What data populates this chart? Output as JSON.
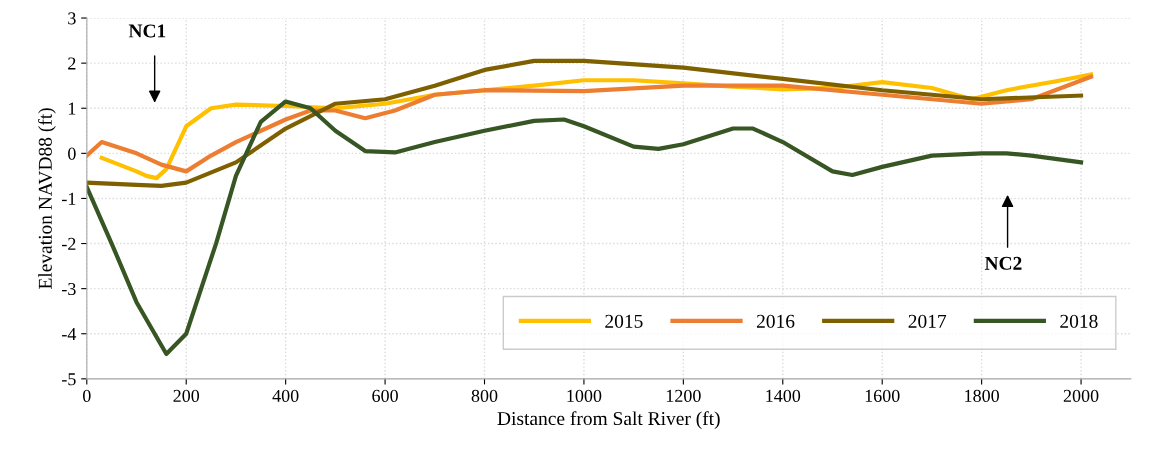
{
  "chart_data": {
    "type": "line",
    "xlabel": "Distance from Salt River (ft)",
    "ylabel": "Elevation NAVD88 (ft)",
    "xlim": [
      0,
      2100
    ],
    "xticks": [
      0,
      200,
      400,
      600,
      800,
      1000,
      1200,
      1400,
      1600,
      1800,
      2000
    ],
    "ylim": [
      -5,
      3
    ],
    "yticks": [
      -5,
      -4,
      -3,
      -2,
      -1,
      0,
      1,
      2,
      3
    ],
    "grid": true,
    "legend": "bottom right",
    "line_style": "solid",
    "marker": "none",
    "annotations": [
      "NC1",
      "NC2"
    ],
    "series": [
      {
        "name": "2015",
        "color": "#ffc000",
        "x": [
          30,
          100,
          120,
          140,
          160,
          200,
          250,
          300,
          400,
          500,
          600,
          700,
          800,
          900,
          1000,
          1100,
          1200,
          1300,
          1400,
          1500,
          1600,
          1700,
          1780,
          1850,
          1950,
          2020
        ],
        "values": [
          -0.1,
          -0.4,
          -0.5,
          -0.55,
          -0.35,
          0.6,
          1.0,
          1.08,
          1.05,
          1.0,
          1.1,
          1.3,
          1.4,
          1.5,
          1.62,
          1.62,
          1.55,
          1.48,
          1.42,
          1.45,
          1.58,
          1.45,
          1.2,
          1.4,
          1.6,
          1.75
        ]
      },
      {
        "name": "2016",
        "color": "#ed7d31",
        "x": [
          0,
          30,
          100,
          150,
          200,
          250,
          300,
          400,
          450,
          500,
          560,
          620,
          700,
          800,
          1000,
          1200,
          1400,
          1600,
          1800,
          1900,
          2020
        ],
        "values": [
          -0.05,
          0.25,
          0.0,
          -0.25,
          -0.4,
          -0.05,
          0.25,
          0.75,
          0.95,
          0.95,
          0.78,
          0.95,
          1.3,
          1.4,
          1.38,
          1.5,
          1.5,
          1.3,
          1.1,
          1.2,
          1.7
        ]
      },
      {
        "name": "2017",
        "color": "#7f6000",
        "x": [
          0,
          100,
          150,
          200,
          300,
          400,
          500,
          600,
          700,
          800,
          900,
          1000,
          1200,
          1400,
          1600,
          1800,
          2000
        ],
        "values": [
          -0.65,
          -0.7,
          -0.72,
          -0.65,
          -0.2,
          0.55,
          1.1,
          1.2,
          1.5,
          1.85,
          2.05,
          2.05,
          1.9,
          1.65,
          1.4,
          1.2,
          1.28
        ]
      },
      {
        "name": "2018",
        "color": "#375623",
        "x": [
          0,
          50,
          100,
          160,
          200,
          260,
          300,
          350,
          400,
          450,
          500,
          560,
          620,
          700,
          800,
          900,
          960,
          1000,
          1100,
          1150,
          1200,
          1300,
          1340,
          1400,
          1500,
          1540,
          1600,
          1700,
          1800,
          1850,
          1900,
          2000
        ],
        "values": [
          -0.75,
          -2.0,
          -3.3,
          -4.45,
          -4.0,
          -2.0,
          -0.5,
          0.7,
          1.15,
          1.0,
          0.5,
          0.05,
          0.02,
          0.25,
          0.5,
          0.72,
          0.75,
          0.6,
          0.15,
          0.1,
          0.2,
          0.55,
          0.55,
          0.25,
          -0.4,
          -0.48,
          -0.3,
          -0.05,
          0.0,
          0.0,
          -0.05,
          -0.2
        ]
      }
    ]
  }
}
